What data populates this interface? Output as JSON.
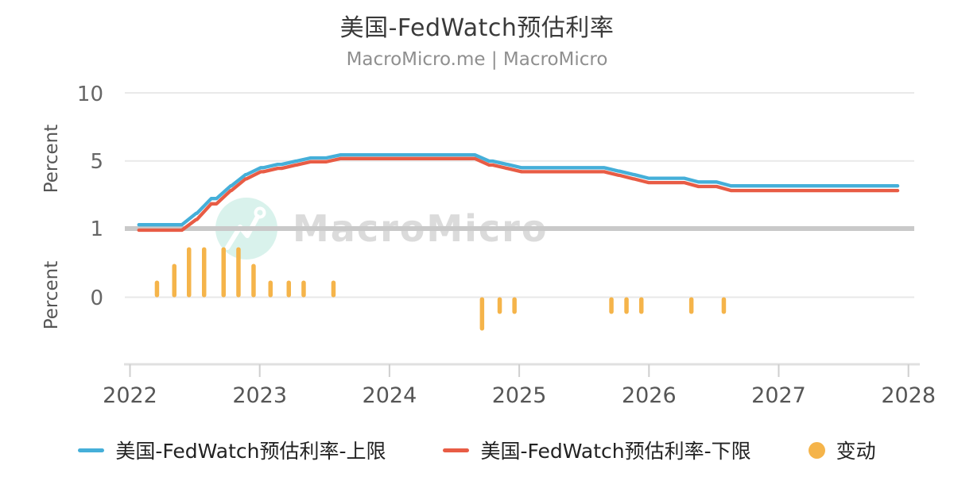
{
  "header": {
    "title": "美国-FedWatch预估利率",
    "subtitle": "MacroMicro.me | MacroMicro"
  },
  "watermark": {
    "text": "MacroMicro"
  },
  "colors": {
    "upper_line": "#45AFD9",
    "lower_line": "#E85C45",
    "change_bar": "#F5B44A",
    "highlight_gridline": "#C9C9C9",
    "watermark_circle": "#D9F2EC"
  },
  "chart_data": {
    "type": "line+bar",
    "title": "美国-FedWatch预估利率",
    "subtitle": "MacroMicro.me | MacroMicro",
    "x_axis": {
      "ticks": [
        "2022",
        "2023",
        "2024",
        "2025",
        "2026",
        "2027",
        "2028"
      ],
      "range": [
        "2022-01",
        "2028-01"
      ]
    },
    "y_axis_upper": {
      "label": "Percent",
      "ticks": [
        "10",
        "5",
        "1"
      ],
      "unit": "percent"
    },
    "y_axis_lower": {
      "label": "Percent",
      "ticks": [
        "0"
      ],
      "unit": "percent"
    },
    "grid": "horizontal-only",
    "legend_position": "bottom-center",
    "end_date": "2027-12-01",
    "series": [
      {
        "name": "美国-FedWatch预估利率-上限",
        "type": "line",
        "color": "#45AFD9",
        "steps": [
          [
            "2022-01-26",
            0.25
          ],
          [
            "2022-03-16",
            0.5
          ],
          [
            "2022-05-04",
            1.0
          ],
          [
            "2022-06-15",
            1.75
          ],
          [
            "2022-07-27",
            2.5
          ],
          [
            "2022-09-21",
            3.25
          ],
          [
            "2022-11-02",
            4.0
          ],
          [
            "2022-12-14",
            4.5
          ],
          [
            "2023-02-01",
            4.75
          ],
          [
            "2023-03-22",
            5.0
          ],
          [
            "2023-05-03",
            5.25
          ],
          [
            "2023-07-26",
            5.5
          ],
          [
            "2024-09-18",
            5.0
          ],
          [
            "2024-11-07",
            4.75
          ],
          [
            "2024-12-18",
            4.5
          ],
          [
            "2025-09-17",
            4.25
          ],
          [
            "2025-10-29",
            4.0
          ],
          [
            "2025-12-10",
            3.75
          ],
          [
            "2026-04-29",
            3.5
          ],
          [
            "2026-07-29",
            3.25
          ]
        ]
      },
      {
        "name": "美国-FedWatch预估利率-下限",
        "type": "line",
        "color": "#E85C45",
        "steps": [
          [
            "2022-01-26",
            0.0
          ],
          [
            "2022-03-16",
            0.25
          ],
          [
            "2022-05-04",
            0.75
          ],
          [
            "2022-06-15",
            1.5
          ],
          [
            "2022-07-27",
            2.25
          ],
          [
            "2022-09-21",
            3.0
          ],
          [
            "2022-11-02",
            3.75
          ],
          [
            "2022-12-14",
            4.25
          ],
          [
            "2023-02-01",
            4.5
          ],
          [
            "2023-03-22",
            4.75
          ],
          [
            "2023-05-03",
            5.0
          ],
          [
            "2023-07-26",
            5.25
          ],
          [
            "2024-09-18",
            4.75
          ],
          [
            "2024-11-07",
            4.5
          ],
          [
            "2024-12-18",
            4.25
          ],
          [
            "2025-09-17",
            4.0
          ],
          [
            "2025-10-29",
            3.75
          ],
          [
            "2025-12-10",
            3.5
          ],
          [
            "2026-04-29",
            3.25
          ],
          [
            "2026-07-29",
            3.0
          ]
        ]
      },
      {
        "name": "变动",
        "type": "bar",
        "color": "#F5B44A",
        "points": [
          [
            "2022-03-16",
            0.25
          ],
          [
            "2022-05-04",
            0.5
          ],
          [
            "2022-06-15",
            0.75
          ],
          [
            "2022-07-27",
            0.75
          ],
          [
            "2022-09-21",
            0.75
          ],
          [
            "2022-11-02",
            0.75
          ],
          [
            "2022-12-14",
            0.5
          ],
          [
            "2023-02-01",
            0.25
          ],
          [
            "2023-03-22",
            0.25
          ],
          [
            "2023-05-03",
            0.25
          ],
          [
            "2023-07-26",
            0.25
          ],
          [
            "2024-09-18",
            -0.5
          ],
          [
            "2024-11-07",
            -0.25
          ],
          [
            "2024-12-18",
            -0.25
          ],
          [
            "2025-09-17",
            -0.25
          ],
          [
            "2025-10-29",
            -0.25
          ],
          [
            "2025-12-10",
            -0.25
          ],
          [
            "2026-04-29",
            -0.25
          ],
          [
            "2026-07-29",
            -0.25
          ]
        ]
      }
    ]
  },
  "legend": {
    "items": [
      {
        "label": "美国-FedWatch预估利率-上限",
        "marker": "line",
        "color": "#45AFD9"
      },
      {
        "label": "美国-FedWatch预估利率-下限",
        "marker": "line",
        "color": "#E85C45"
      },
      {
        "label": "变动",
        "marker": "circle",
        "color": "#F5B44A"
      }
    ]
  }
}
